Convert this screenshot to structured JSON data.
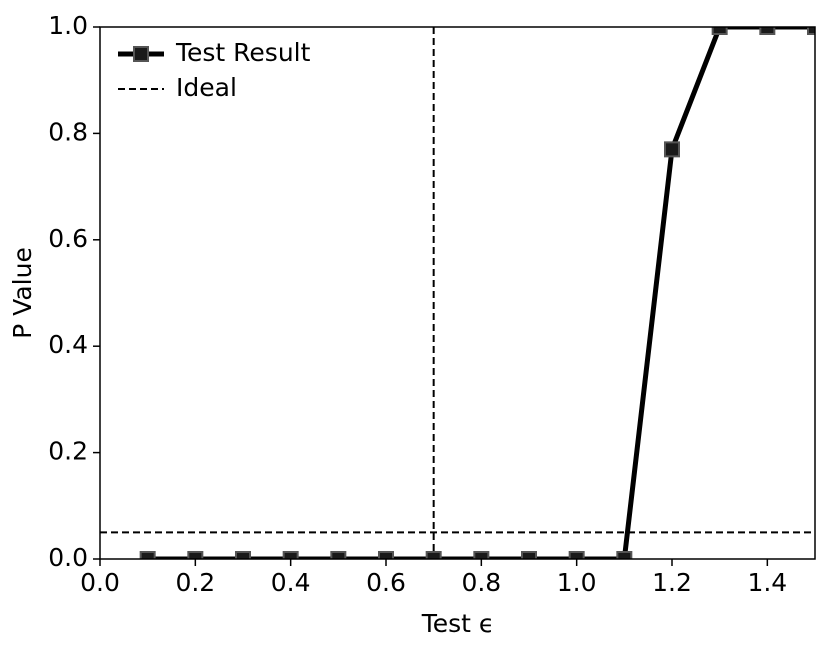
{
  "chart_data": {
    "type": "line",
    "x_label": "Test ϵ",
    "y_label": "P Value",
    "x": [
      0.1,
      0.2,
      0.3,
      0.4,
      0.5,
      0.6,
      0.7,
      0.8,
      0.9,
      1.0,
      1.1,
      1.2,
      1.3,
      1.4,
      1.5
    ],
    "series": [
      {
        "name": "Test Result",
        "color": "#000000",
        "values": [
          0,
          0,
          0,
          0,
          0,
          0,
          0,
          0,
          0,
          0,
          0,
          0.77,
          1,
          1,
          1
        ]
      }
    ],
    "ideal": {
      "name": "Ideal",
      "x": 0.7,
      "y": 0.05
    },
    "xlim": [
      0,
      1.5
    ],
    "xticks": [
      {
        "value": 0,
        "label": "0.0"
      },
      0.2,
      0.4,
      0.6,
      0.8,
      {
        "value": 1,
        "label": "1.0"
      },
      1.2,
      1.4
    ],
    "ylim": [
      0,
      1
    ],
    "yticks": [
      {
        "value": 0,
        "label": "0.0"
      },
      0.2,
      0.4,
      0.6,
      0.8,
      {
        "value": 1,
        "label": "1.0"
      }
    ],
    "grid": false,
    "legend": "upper left"
  }
}
